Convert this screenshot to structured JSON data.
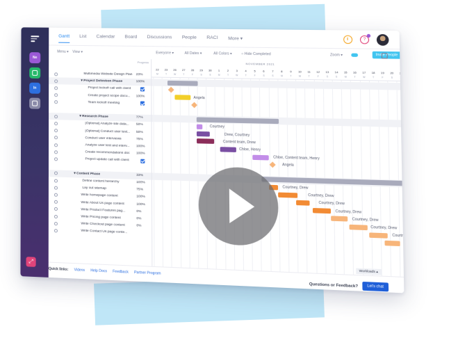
{
  "sidebar": {
    "workspaces": [
      "Ne",
      "",
      "In",
      ""
    ]
  },
  "nav": {
    "tabs": [
      "Gantt",
      "List",
      "Calendar",
      "Board",
      "Discussions",
      "People",
      "RACI",
      "More ▾"
    ]
  },
  "toolbar": {
    "menu": "Menu ▾",
    "view": "View ▾",
    "everyone": "Everyone ▾",
    "all_dates": "All Dates ▾",
    "all_colors": "All Colors ▾",
    "hide_completed": "Hide Completed",
    "zoom": "Zoom ▾",
    "invite": "Invite People"
  },
  "tasklist": {
    "column_header": "Progress",
    "rows": [
      {
        "name": "Multimedia Website Design Plan",
        "pct": "23%",
        "type": "project",
        "indent": 50
      },
      {
        "name": "▾ Project Definition Phase",
        "pct": "100%",
        "type": "phase",
        "indent": 46
      },
      {
        "name": "Project kickoff call with client",
        "pct": "",
        "type": "task",
        "indent": 56,
        "check": true
      },
      {
        "name": "Create project scope docu...",
        "pct": "100%",
        "type": "task",
        "indent": 56
      },
      {
        "name": "Team kickoff meeting",
        "pct": "",
        "type": "task",
        "indent": 56,
        "check": true
      },
      {
        "name": "",
        "pct": "",
        "type": "blank",
        "indent": 56
      },
      {
        "name": "▾ Research Phase",
        "pct": "77%",
        "type": "phase",
        "indent": 44
      },
      {
        "name": "[Optional] Analyze site data...",
        "pct": "50%",
        "type": "task",
        "indent": 52
      },
      {
        "name": "[Optional] Conduct user test...",
        "pct": "50%",
        "type": "task",
        "indent": 52
      },
      {
        "name": "Conduct user interviews",
        "pct": "75%",
        "type": "task",
        "indent": 52
      },
      {
        "name": "Analyze user test and interv...",
        "pct": "100%",
        "type": "task",
        "indent": 52
      },
      {
        "name": "Create recommendations doc",
        "pct": "100%",
        "type": "task",
        "indent": 52
      },
      {
        "name": "Project update call with client",
        "pct": "",
        "type": "task",
        "indent": 52,
        "check": true
      },
      {
        "name": "",
        "pct": "",
        "type": "blank",
        "indent": 52
      },
      {
        "name": "▾ Content Phase",
        "pct": "33%",
        "type": "phase",
        "indent": 36
      },
      {
        "name": "Define content hierarchy",
        "pct": "100%",
        "type": "task",
        "indent": 48
      },
      {
        "name": "Lay out sitemap",
        "pct": "75%",
        "type": "task",
        "indent": 48
      },
      {
        "name": "Write homepage content",
        "pct": "100%",
        "type": "task",
        "indent": 46
      },
      {
        "name": "Write About Us page content",
        "pct": "100%",
        "type": "task",
        "indent": 46
      },
      {
        "name": "Write Product Features pag...",
        "pct": "0%",
        "type": "task",
        "indent": 46
      },
      {
        "name": "Write Pricing page content",
        "pct": "0%",
        "type": "task",
        "indent": 46
      },
      {
        "name": "Write Checkout page content",
        "pct": "0%",
        "type": "task",
        "indent": 46
      },
      {
        "name": "Write Contact Us page conte...",
        "pct": "",
        "type": "task",
        "indent": 46
      }
    ]
  },
  "gantt": {
    "month": "NOVEMBER 2021",
    "days": [
      {
        "n": "22",
        "d": "M"
      },
      {
        "n": "23",
        "d": "T"
      },
      {
        "n": "26",
        "d": "W"
      },
      {
        "n": "27",
        "d": "T"
      },
      {
        "n": "28",
        "d": "F"
      },
      {
        "n": "29",
        "d": "S"
      },
      {
        "n": "30",
        "d": "S"
      },
      {
        "n": "1",
        "d": "M"
      },
      {
        "n": "2",
        "d": "T"
      },
      {
        "n": "3",
        "d": "W"
      },
      {
        "n": "4",
        "d": "T"
      },
      {
        "n": "5",
        "d": "F"
      },
      {
        "n": "6",
        "d": "S"
      },
      {
        "n": "7",
        "d": "S"
      },
      {
        "n": "8",
        "d": "M"
      },
      {
        "n": "9",
        "d": "T"
      },
      {
        "n": "10",
        "d": "W"
      },
      {
        "n": "11",
        "d": "T"
      },
      {
        "n": "12",
        "d": "F"
      },
      {
        "n": "13",
        "d": "S"
      },
      {
        "n": "14",
        "d": "S"
      },
      {
        "n": "15",
        "d": "M"
      },
      {
        "n": "16",
        "d": "T"
      },
      {
        "n": "17",
        "d": "W"
      },
      {
        "n": "18",
        "d": "T"
      },
      {
        "n": "19",
        "d": "F"
      },
      {
        "n": "20",
        "d": "S"
      },
      {
        "n": "21",
        "d": "S"
      },
      {
        "n": "22",
        "d": "M"
      },
      {
        "n": "23",
        "d": "T"
      },
      {
        "n": "24",
        "d": "W"
      },
      {
        "n": "25",
        "d": "T"
      },
      {
        "n": "26",
        "d": "F"
      },
      {
        "n": "27",
        "d": "S"
      },
      {
        "n": "28",
        "d": "S"
      },
      {
        "n": "1",
        "d": "M"
      },
      {
        "n": "2",
        "d": "T"
      }
    ],
    "labels": {
      "angela": "Angela",
      "courtney": "Courtney",
      "drew_courtney": "Drew, Courtney",
      "content_team_drew": "Content team, Drew",
      "chloe_henry": "Chloe, Henry",
      "chloe_team_henry": "Chloe, Content team, Henry",
      "angela2": "Angela",
      "courtney_drew_1": "Courtney, Drew",
      "courtney_drew_2": "Courtney, Drew",
      "courtney_drew_3": "Courtney, Drew",
      "courtney_drew_4": "Courtney, Drew",
      "courtney_drew_5": "Courtney, Drew",
      "courtney_drew_6": "Courtney, Drew",
      "courtney_drew_7": "Courtney, Drew"
    }
  },
  "footer": {
    "quick_links": "Quick links:",
    "videos": "Videos",
    "help_docs": "Help Docs",
    "feedback": "Feedback",
    "partner": "Partner Program",
    "questions": "Questions or Feedback?",
    "chat": "Let's chat",
    "workloads": "Workloads ▴"
  },
  "colors": {
    "accent": "#2d8cf0",
    "gray_bar": "#a9abbc",
    "yellow_bar": "#f2cf2a",
    "purple_bar": "#7a4fa3",
    "magenta_bar": "#8b2d5a",
    "violet_light": "#c28de8",
    "orange_bar": "#f28b34",
    "orange_light": "#f7b57a"
  }
}
